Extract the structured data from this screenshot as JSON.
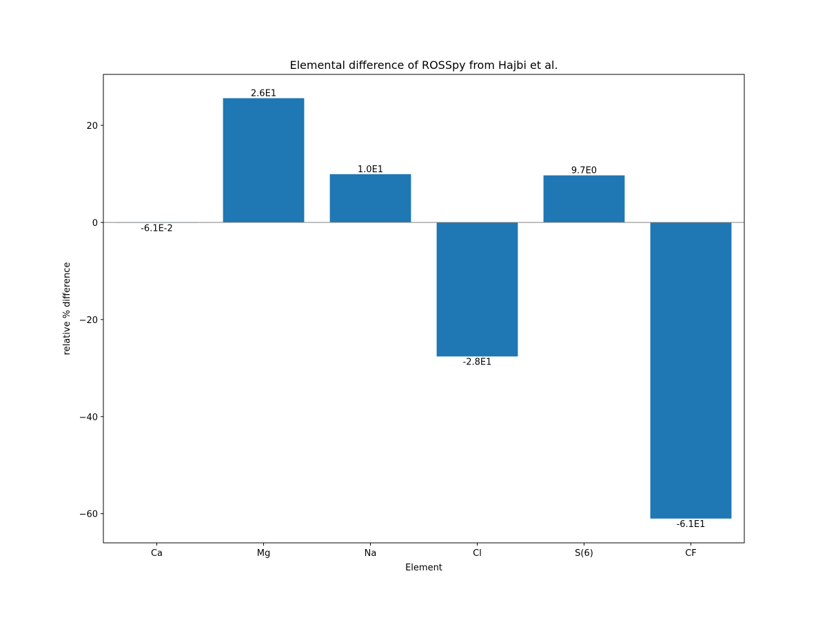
{
  "chart_data": {
    "type": "bar",
    "title": "Elemental difference of ROSSpy from Hajbi et al.",
    "xlabel": "Element",
    "ylabel": "relative % difference",
    "categories": [
      "Ca",
      "Mg",
      "Na",
      "Cl",
      "S(6)",
      "CF"
    ],
    "values": [
      -0.061,
      25.6,
      9.95,
      -27.6,
      9.7,
      -61.0
    ],
    "data_labels": [
      "-6.1E-2",
      "2.6E1",
      "1.0E1",
      "-2.8E1",
      "9.7E0",
      "-6.1E1"
    ],
    "ylim": [
      -66.0,
      30.5
    ],
    "yticks": [
      -60,
      -40,
      -20,
      0,
      20
    ],
    "ytick_labels": [
      "−60",
      "−40",
      "−20",
      "0",
      "20"
    ],
    "bar_color": "#1f77b4",
    "zero_line_color": "#808080",
    "grid": false,
    "legend": "none"
  }
}
